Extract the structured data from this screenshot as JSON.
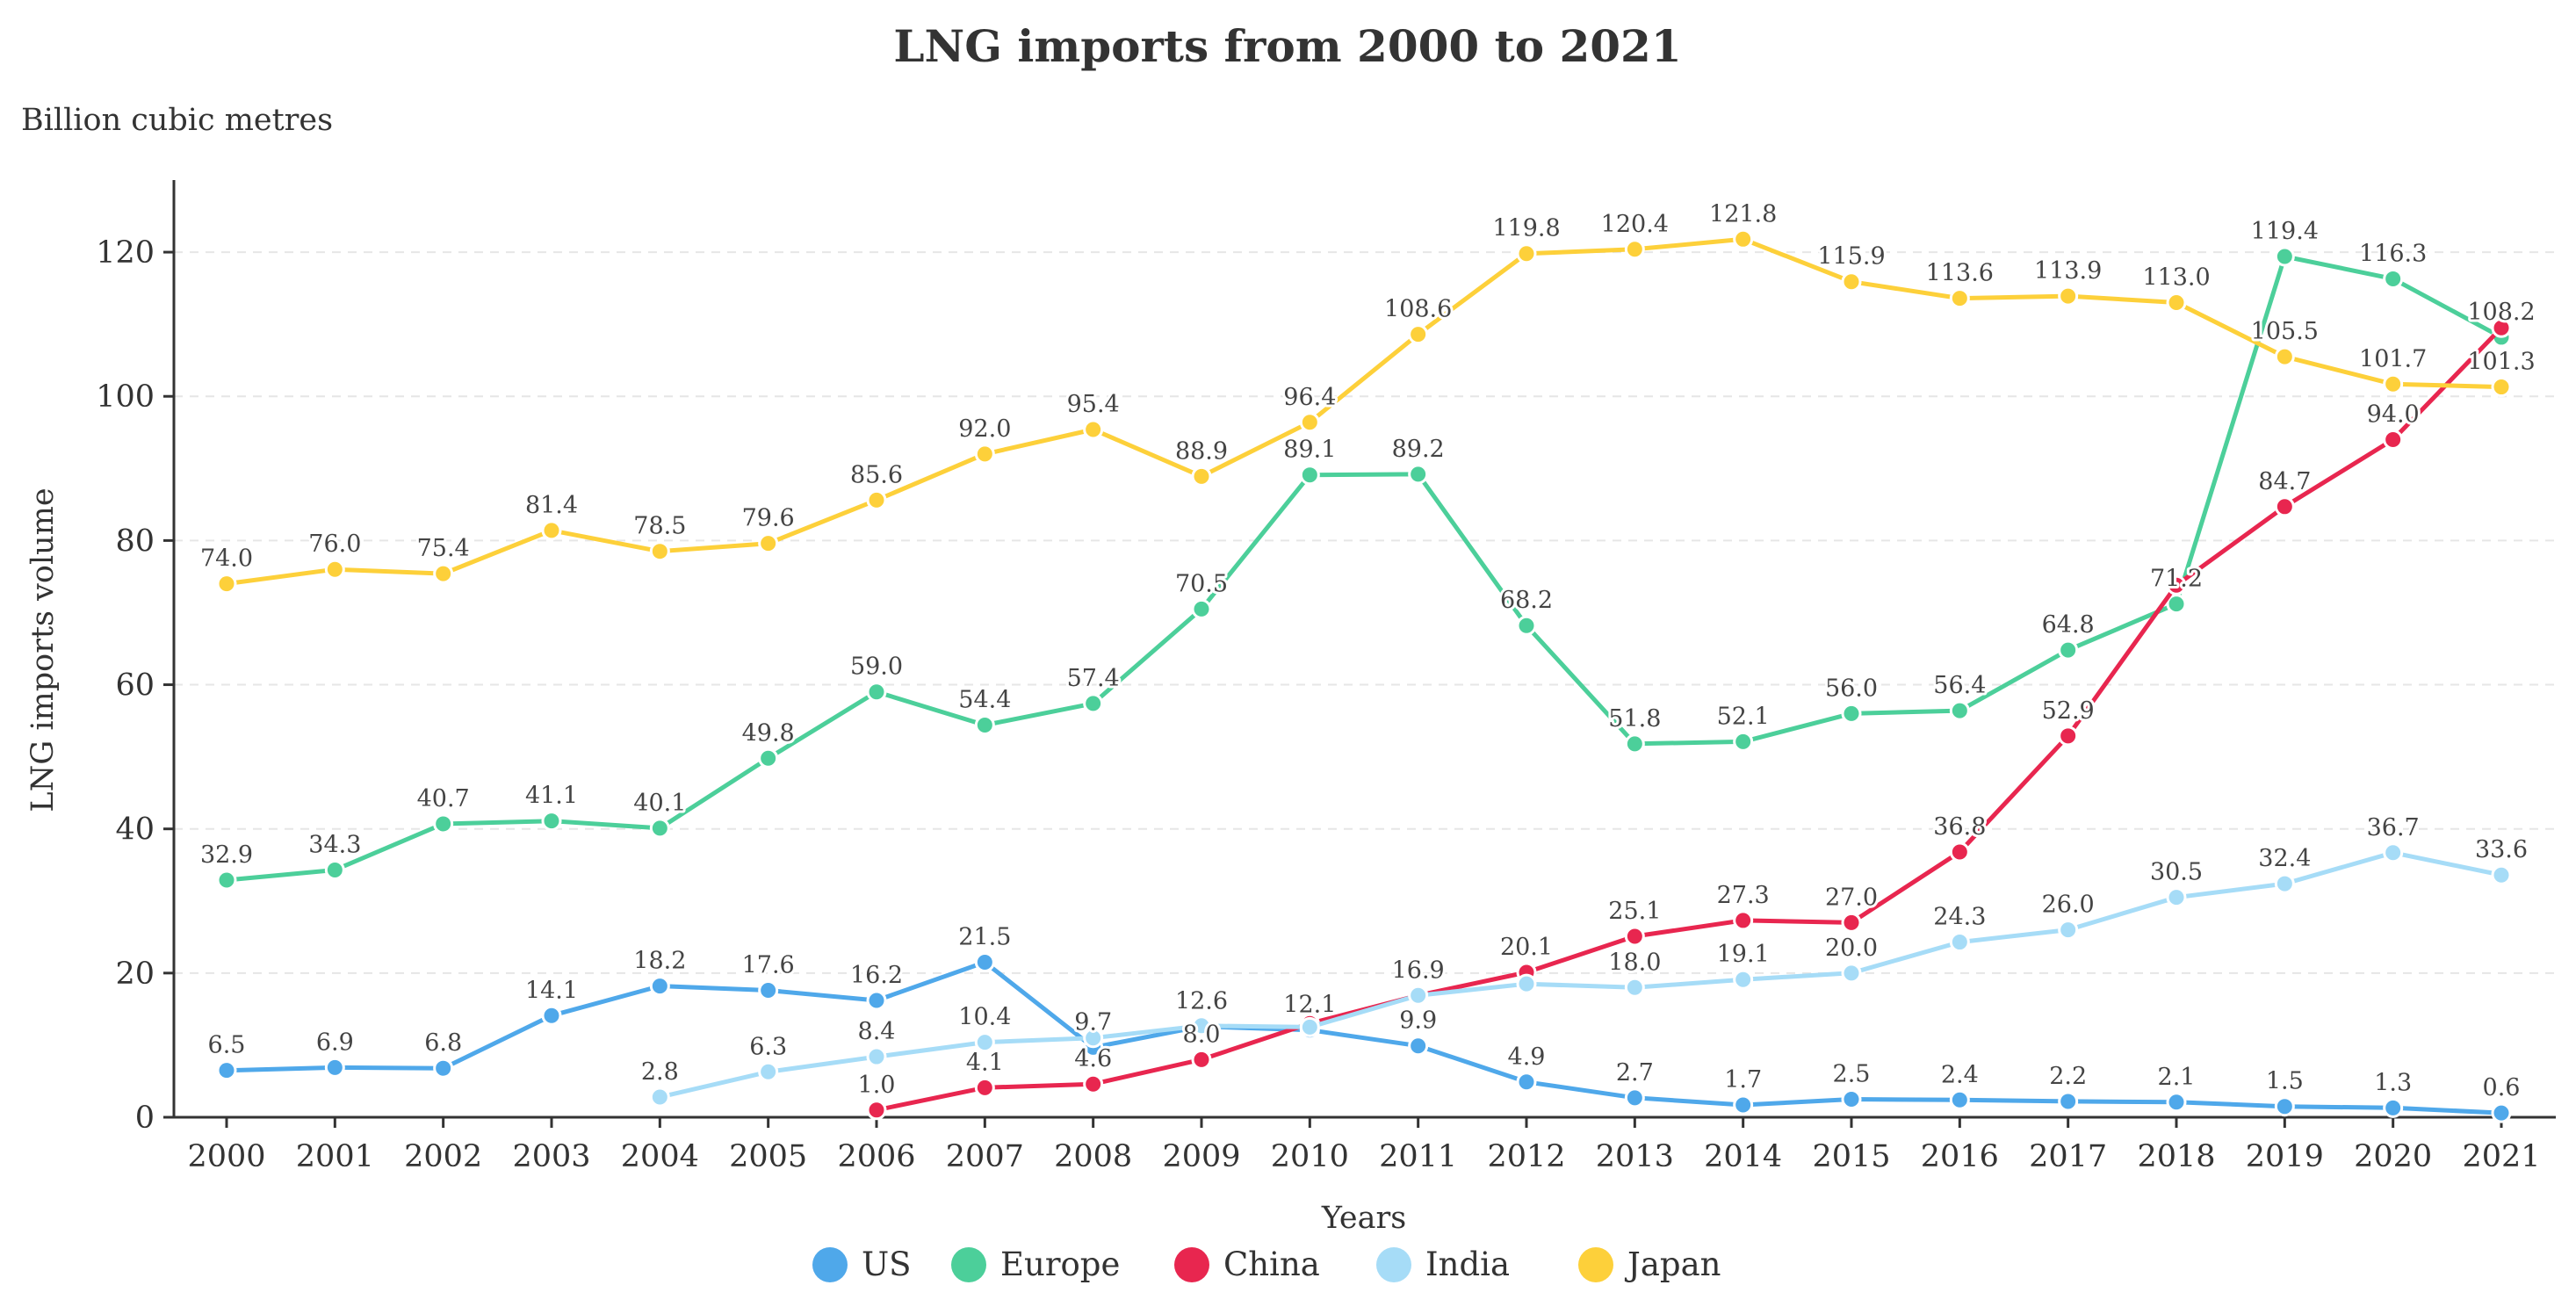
{
  "chart_data": {
    "type": "line",
    "title": "LNG imports from 2000 to 2021",
    "unit_label": "Billion cubic metres",
    "xlabel": "Years",
    "ylabel": "LNG imports volume",
    "ylim": [
      0,
      130
    ],
    "yticks": [
      0,
      20,
      40,
      60,
      80,
      100,
      120
    ],
    "grid": true,
    "legend_position": "bottom",
    "x": [
      "2000",
      "2001",
      "2002",
      "2003",
      "2004",
      "2005",
      "2006",
      "2007",
      "2008",
      "2009",
      "2010",
      "2011",
      "2012",
      "2013",
      "2014",
      "2015",
      "2016",
      "2017",
      "2018",
      "2019",
      "2020",
      "2021"
    ],
    "series": [
      {
        "name": "US",
        "color": "#4fa8ea",
        "values": [
          6.5,
          6.9,
          6.8,
          14.1,
          18.2,
          17.6,
          16.2,
          21.5,
          9.7,
          12.6,
          12.1,
          9.9,
          4.9,
          2.7,
          1.7,
          2.5,
          2.4,
          2.2,
          2.1,
          1.5,
          1.3,
          0.6
        ],
        "labels": [
          "6.5",
          "6.9",
          "6.8",
          "14.1",
          "18.2",
          "17.6",
          "16.2",
          "21.5",
          "9.7",
          "12.6",
          "12.1",
          "9.9",
          "4.9",
          "2.7",
          "1.7",
          "2.5",
          "2.4",
          "2.2",
          "2.1",
          "1.5",
          "1.3",
          "0.6"
        ]
      },
      {
        "name": "Europe",
        "color": "#4ccf9a",
        "values": [
          32.9,
          34.3,
          40.7,
          41.1,
          40.1,
          49.8,
          59.0,
          54.4,
          57.4,
          70.5,
          89.1,
          89.2,
          68.2,
          51.8,
          52.1,
          56.0,
          56.4,
          64.8,
          71.2,
          119.4,
          116.3,
          108.2
        ],
        "labels": [
          "32.9",
          "34.3",
          "40.7",
          "41.1",
          "40.1",
          "49.8",
          "59.0",
          "54.4",
          "57.4",
          "70.5",
          "89.1",
          "89.2",
          "68.2",
          "51.8",
          "52.1",
          "56.0",
          "56.4",
          "64.8",
          "71.2",
          "119.4",
          "116.3",
          "108.2"
        ]
      },
      {
        "name": "China",
        "color": "#e8264f",
        "values": [
          null,
          null,
          null,
          null,
          null,
          null,
          1.0,
          4.1,
          4.6,
          8.0,
          13.0,
          16.9,
          20.1,
          25.1,
          27.3,
          27.0,
          36.8,
          52.9,
          73.8,
          84.7,
          94.0,
          109.5
        ],
        "labels": [
          null,
          null,
          null,
          null,
          null,
          null,
          "1.0",
          "4.1",
          "4.6",
          "8.0",
          null,
          null,
          "20.1",
          "25.1",
          "27.3",
          "27.0",
          "36.8",
          "52.9",
          null,
          "84.7",
          "94.0",
          null
        ]
      },
      {
        "name": "India",
        "color": "#a6dcf7",
        "values": [
          null,
          null,
          null,
          null,
          2.8,
          6.3,
          8.4,
          10.4,
          11.0,
          12.7,
          12.5,
          16.9,
          18.5,
          18.0,
          19.1,
          20.0,
          24.3,
          26.0,
          30.5,
          32.4,
          36.7,
          33.6
        ],
        "labels": [
          null,
          null,
          null,
          null,
          "2.8",
          "6.3",
          "8.4",
          "10.4",
          null,
          null,
          null,
          "16.9",
          null,
          "18.0",
          "19.1",
          "20.0",
          "24.3",
          "26.0",
          "30.5",
          "32.4",
          "36.7",
          "33.6"
        ]
      },
      {
        "name": "Japan",
        "color": "#fdd03a",
        "values": [
          74.0,
          76.0,
          75.4,
          81.4,
          78.5,
          79.6,
          85.6,
          92.0,
          95.4,
          88.9,
          96.4,
          108.6,
          119.8,
          120.4,
          121.8,
          115.9,
          113.6,
          113.9,
          113.0,
          105.5,
          101.7,
          101.3
        ],
        "labels": [
          "74.0",
          "76.0",
          "75.4",
          "81.4",
          "78.5",
          "79.6",
          "85.6",
          "92.0",
          "95.4",
          "88.9",
          "96.4",
          "108.6",
          "119.8",
          "120.4",
          "121.8",
          "115.9",
          "113.6",
          "113.9",
          "113.0",
          "105.5",
          "101.7",
          "101.3"
        ]
      }
    ]
  }
}
